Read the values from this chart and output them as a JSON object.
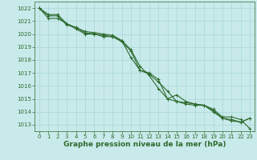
{
  "title": "",
  "xlabel": "Graphe pression niveau de la mer (hPa)",
  "ylabel": "",
  "background_color": "#c8eaea",
  "grid_color": "#a8d8d8",
  "line_color": "#2d6a2d",
  "ylim": [
    1012.5,
    1022.5
  ],
  "xlim": [
    -0.5,
    23.5
  ],
  "yticks": [
    1013,
    1014,
    1015,
    1016,
    1017,
    1018,
    1019,
    1020,
    1021,
    1022
  ],
  "xticks": [
    0,
    1,
    2,
    3,
    4,
    5,
    6,
    7,
    8,
    9,
    10,
    11,
    12,
    13,
    14,
    15,
    16,
    17,
    18,
    19,
    20,
    21,
    22,
    23
  ],
  "series": [
    [
      1022.0,
      1021.5,
      1021.5,
      1020.8,
      1020.4,
      1020.0,
      1020.0,
      1019.8,
      1019.8,
      1019.5,
      1018.2,
      1017.2,
      1017.0,
      1016.5,
      1015.0,
      1015.3,
      1014.8,
      1014.6,
      1014.5,
      1014.2,
      1013.6,
      1013.6,
      1013.4,
      1012.7
    ],
    [
      1022.0,
      1021.4,
      1021.4,
      1020.7,
      1020.5,
      1020.1,
      1020.0,
      1019.9,
      1019.8,
      1019.4,
      1018.7,
      1017.2,
      1016.9,
      1016.3,
      1015.6,
      1014.8,
      1014.7,
      1014.6,
      1014.5,
      1014.1,
      1013.5,
      1013.4,
      1013.2,
      1013.5
    ],
    [
      1022.0,
      1021.2,
      1021.2,
      1020.8,
      1020.5,
      1020.2,
      1020.1,
      1020.0,
      1019.9,
      1019.5,
      1018.8,
      1017.5,
      1016.8,
      1015.8,
      1015.0,
      1014.8,
      1014.6,
      1014.5,
      1014.5,
      1014.0,
      1013.5,
      1013.3,
      1013.2,
      1013.5
    ]
  ],
  "marker": "+",
  "markersize": 3,
  "linewidth": 0.8,
  "tick_fontsize": 5,
  "label_fontsize": 6.5,
  "label_fontweight": "bold"
}
